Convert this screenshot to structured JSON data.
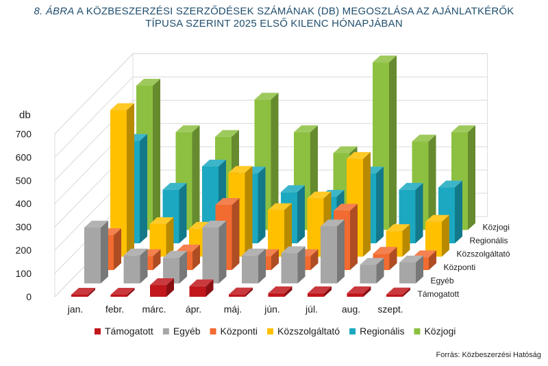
{
  "title": {
    "number": "8. ÁBRA",
    "line1": "A KÖZBESZERZÉSI SZERZŐDÉSEK SZÁMÁNAK (DB) MEGOSZLÁSA AZ AJÁNLATKÉRŐK",
    "line2": "TÍPUSA SZERINT 2025 ELSŐ KILENC HÓNAPJÁBAN"
  },
  "source": "Forrás: Közbeszerzési Hatóság",
  "chart_data": {
    "type": "bar",
    "style": "3d-clustered-depth",
    "ylabel": "db",
    "ylim": [
      0,
      700
    ],
    "yticks": [
      0,
      100,
      200,
      300,
      400,
      500,
      600,
      700
    ],
    "grid": true,
    "legend": "bottom",
    "categories": [
      "jan.",
      "febr.",
      "márc.",
      "ápr.",
      "máj.",
      "jún.",
      "júl.",
      "aug.",
      "szept."
    ],
    "series": [
      {
        "name": "Támogatott",
        "color": "#c0161c",
        "values": [
          5,
          5,
          50,
          45,
          10,
          15,
          15,
          15,
          10
        ]
      },
      {
        "name": "Egyéb",
        "color": "#a6a6a6",
        "values": [
          240,
          120,
          110,
          240,
          120,
          130,
          245,
          80,
          90
        ]
      },
      {
        "name": "Központi",
        "color": "#f26b30",
        "values": [
          150,
          60,
          80,
          280,
          60,
          60,
          255,
          70,
          55
        ]
      },
      {
        "name": "Közszolgáltató",
        "color": "#ffc000",
        "values": [
          630,
          140,
          120,
          360,
          200,
          250,
          420,
          110,
          150
        ]
      },
      {
        "name": "Regionális",
        "color": "#1ba8c0",
        "values": [
          440,
          230,
          330,
          300,
          220,
          200,
          300,
          230,
          240
        ]
      },
      {
        "name": "Közjogi",
        "color": "#8dc040",
        "values": [
          620,
          420,
          400,
          560,
          420,
          330,
          720,
          380,
          420
        ]
      }
    ]
  }
}
